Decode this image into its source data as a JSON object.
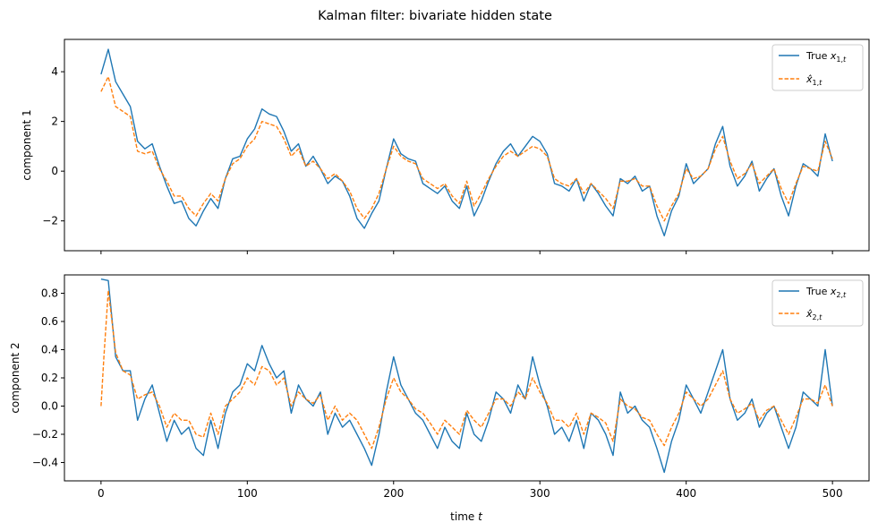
{
  "figure": {
    "title": "Kalman filter: bivariate hidden state",
    "xlabel_text": "time ",
    "xlabel_var": "t"
  },
  "colors": {
    "true": "#1f77b4",
    "estimate": "#ff7f0e"
  },
  "chart_data": [
    {
      "type": "line",
      "ylabel": "component 1",
      "xlim": [
        -25,
        525
      ],
      "ylim": [
        -3.2,
        5.3
      ],
      "xticks": [
        0,
        100,
        200,
        300,
        400,
        500
      ],
      "yticks": [
        -2,
        0,
        2,
        4
      ],
      "ytick_labels": [
        "−2",
        "0",
        "2",
        "4"
      ],
      "legend": {
        "position": "top-right",
        "entries": [
          "True x_{1,t}",
          "x̂_{1,t}"
        ]
      },
      "series": [
        {
          "name": "True x_{1,t}",
          "style": "solid",
          "color": "#1f77b4",
          "x": [
            0,
            5,
            10,
            15,
            20,
            25,
            30,
            35,
            40,
            45,
            50,
            55,
            60,
            65,
            70,
            75,
            80,
            85,
            90,
            95,
            100,
            105,
            110,
            115,
            120,
            125,
            130,
            135,
            140,
            145,
            150,
            155,
            160,
            165,
            170,
            175,
            180,
            185,
            190,
            195,
            200,
            205,
            210,
            215,
            220,
            225,
            230,
            235,
            240,
            245,
            250,
            255,
            260,
            265,
            270,
            275,
            280,
            285,
            290,
            295,
            300,
            305,
            310,
            315,
            320,
            325,
            330,
            335,
            340,
            345,
            350,
            355,
            360,
            365,
            370,
            375,
            380,
            385,
            390,
            395,
            400,
            405,
            410,
            415,
            420,
            425,
            430,
            435,
            440,
            445,
            450,
            455,
            460,
            465,
            470,
            475,
            480,
            485,
            490,
            495,
            500
          ],
          "y": [
            3.9,
            4.9,
            3.6,
            3.1,
            2.6,
            1.2,
            0.9,
            1.1,
            0.2,
            -0.6,
            -1.3,
            -1.2,
            -1.9,
            -2.2,
            -1.6,
            -1.1,
            -1.5,
            -0.3,
            0.5,
            0.6,
            1.3,
            1.7,
            2.5,
            2.3,
            2.2,
            1.6,
            0.8,
            1.1,
            0.2,
            0.6,
            0.1,
            -0.5,
            -0.2,
            -0.4,
            -1.0,
            -1.9,
            -2.3,
            -1.7,
            -1.2,
            0.1,
            1.3,
            0.7,
            0.5,
            0.4,
            -0.5,
            -0.7,
            -0.9,
            -0.6,
            -1.2,
            -1.5,
            -0.6,
            -1.8,
            -1.2,
            -0.4,
            0.3,
            0.8,
            1.1,
            0.6,
            1.0,
            1.4,
            1.2,
            0.7,
            -0.5,
            -0.6,
            -0.8,
            -0.3,
            -1.2,
            -0.5,
            -0.9,
            -1.4,
            -1.8,
            -0.3,
            -0.5,
            -0.2,
            -0.8,
            -0.6,
            -1.8,
            -2.6,
            -1.6,
            -1.0,
            0.3,
            -0.5,
            -0.2,
            0.1,
            1.1,
            1.8,
            0.2,
            -0.6,
            -0.2,
            0.4,
            -0.8,
            -0.3,
            0.1,
            -1.0,
            -1.8,
            -0.6,
            0.3,
            0.1,
            -0.2,
            1.5,
            0.4
          ]
        },
        {
          "name": "x̂_{1,t}",
          "style": "dashed",
          "color": "#ff7f0e",
          "x": [
            0,
            5,
            10,
            15,
            20,
            25,
            30,
            35,
            40,
            45,
            50,
            55,
            60,
            65,
            70,
            75,
            80,
            85,
            90,
            95,
            100,
            105,
            110,
            115,
            120,
            125,
            130,
            135,
            140,
            145,
            150,
            155,
            160,
            165,
            170,
            175,
            180,
            185,
            190,
            195,
            200,
            205,
            210,
            215,
            220,
            225,
            230,
            235,
            240,
            245,
            250,
            255,
            260,
            265,
            270,
            275,
            280,
            285,
            290,
            295,
            300,
            305,
            310,
            315,
            320,
            325,
            330,
            335,
            340,
            345,
            350,
            355,
            360,
            365,
            370,
            375,
            380,
            385,
            390,
            395,
            400,
            405,
            410,
            415,
            420,
            425,
            430,
            435,
            440,
            445,
            450,
            455,
            460,
            465,
            470,
            475,
            480,
            485,
            490,
            495,
            500
          ],
          "y": [
            3.2,
            3.8,
            2.6,
            2.4,
            2.2,
            0.8,
            0.7,
            0.8,
            0.1,
            -0.4,
            -1.0,
            -1.0,
            -1.5,
            -1.8,
            -1.3,
            -0.9,
            -1.2,
            -0.3,
            0.3,
            0.5,
            1.0,
            1.3,
            2.0,
            1.9,
            1.8,
            1.3,
            0.6,
            0.9,
            0.2,
            0.4,
            0.1,
            -0.3,
            -0.1,
            -0.4,
            -0.8,
            -1.5,
            -1.9,
            -1.5,
            -0.9,
            0.1,
            1.0,
            0.6,
            0.4,
            0.3,
            -0.3,
            -0.5,
            -0.7,
            -0.5,
            -1.0,
            -1.3,
            -0.4,
            -1.4,
            -0.9,
            -0.3,
            0.2,
            0.6,
            0.8,
            0.6,
            0.8,
            1.0,
            0.9,
            0.6,
            -0.3,
            -0.5,
            -0.6,
            -0.3,
            -0.9,
            -0.5,
            -0.8,
            -1.1,
            -1.5,
            -0.4,
            -0.4,
            -0.3,
            -0.6,
            -0.6,
            -1.4,
            -2.0,
            -1.4,
            -0.9,
            0.1,
            -0.3,
            -0.2,
            0.1,
            0.9,
            1.4,
            0.4,
            -0.3,
            -0.1,
            0.3,
            -0.5,
            -0.2,
            0.1,
            -0.7,
            -1.3,
            -0.5,
            0.2,
            0.1,
            0.0,
            1.2,
            0.5
          ]
        }
      ]
    },
    {
      "type": "line",
      "ylabel": "component 2",
      "xlim": [
        -25,
        525
      ],
      "ylim": [
        -0.53,
        0.93
      ],
      "xticks": [
        0,
        100,
        200,
        300,
        400,
        500
      ],
      "xtick_labels": [
        "0",
        "100",
        "200",
        "300",
        "400",
        "500"
      ],
      "yticks": [
        -0.4,
        -0.2,
        0.0,
        0.2,
        0.4,
        0.6,
        0.8
      ],
      "ytick_labels": [
        "−0.4",
        "−0.2",
        "0.0",
        "0.2",
        "0.4",
        "0.6",
        "0.8"
      ],
      "legend": {
        "position": "top-right",
        "entries": [
          "True x_{2,t}",
          "x̂_{2,t}"
        ]
      },
      "series": [
        {
          "name": "True x_{2,t}",
          "style": "solid",
          "color": "#1f77b4",
          "x": [
            0,
            5,
            10,
            15,
            20,
            25,
            30,
            35,
            40,
            45,
            50,
            55,
            60,
            65,
            70,
            75,
            80,
            85,
            90,
            95,
            100,
            105,
            110,
            115,
            120,
            125,
            130,
            135,
            140,
            145,
            150,
            155,
            160,
            165,
            170,
            175,
            180,
            185,
            190,
            195,
            200,
            205,
            210,
            215,
            220,
            225,
            230,
            235,
            240,
            245,
            250,
            255,
            260,
            265,
            270,
            275,
            280,
            285,
            290,
            295,
            300,
            305,
            310,
            315,
            320,
            325,
            330,
            335,
            340,
            345,
            350,
            355,
            360,
            365,
            370,
            375,
            380,
            385,
            390,
            395,
            400,
            405,
            410,
            415,
            420,
            425,
            430,
            435,
            440,
            445,
            450,
            455,
            460,
            465,
            470,
            475,
            480,
            485,
            490,
            495,
            500
          ],
          "y": [
            0.9,
            0.89,
            0.35,
            0.25,
            0.25,
            -0.1,
            0.05,
            0.15,
            -0.05,
            -0.25,
            -0.1,
            -0.2,
            -0.15,
            -0.3,
            -0.35,
            -0.1,
            -0.3,
            -0.05,
            0.1,
            0.15,
            0.3,
            0.25,
            0.43,
            0.3,
            0.2,
            0.25,
            -0.05,
            0.15,
            0.05,
            0.0,
            0.1,
            -0.2,
            -0.05,
            -0.15,
            -0.1,
            -0.2,
            -0.3,
            -0.42,
            -0.2,
            0.1,
            0.35,
            0.15,
            0.05,
            -0.05,
            -0.1,
            -0.2,
            -0.3,
            -0.15,
            -0.25,
            -0.3,
            -0.05,
            -0.2,
            -0.25,
            -0.1,
            0.1,
            0.05,
            -0.05,
            0.15,
            0.05,
            0.35,
            0.15,
            0.0,
            -0.2,
            -0.15,
            -0.25,
            -0.1,
            -0.3,
            -0.05,
            -0.1,
            -0.2,
            -0.35,
            0.1,
            -0.05,
            0.0,
            -0.1,
            -0.15,
            -0.3,
            -0.47,
            -0.25,
            -0.1,
            0.15,
            0.05,
            -0.05,
            0.1,
            0.25,
            0.4,
            0.05,
            -0.1,
            -0.05,
            0.05,
            -0.15,
            -0.05,
            0.0,
            -0.15,
            -0.3,
            -0.15,
            0.1,
            0.05,
            0.0,
            0.4,
            0.0
          ]
        },
        {
          "name": "x̂_{2,t}",
          "style": "dashed",
          "color": "#ff7f0e",
          "x": [
            0,
            2,
            5,
            10,
            15,
            20,
            25,
            30,
            35,
            40,
            45,
            50,
            55,
            60,
            65,
            70,
            75,
            80,
            85,
            90,
            95,
            100,
            105,
            110,
            115,
            120,
            125,
            130,
            135,
            140,
            145,
            150,
            155,
            160,
            165,
            170,
            175,
            180,
            185,
            190,
            195,
            200,
            205,
            210,
            215,
            220,
            225,
            230,
            235,
            240,
            245,
            250,
            255,
            260,
            265,
            270,
            275,
            280,
            285,
            290,
            295,
            300,
            305,
            310,
            315,
            320,
            325,
            330,
            335,
            340,
            345,
            350,
            355,
            360,
            365,
            370,
            375,
            380,
            385,
            390,
            395,
            400,
            405,
            410,
            415,
            420,
            425,
            430,
            435,
            440,
            445,
            450,
            455,
            460,
            465,
            470,
            475,
            480,
            485,
            490,
            495,
            500
          ],
          "y": [
            0.0,
            0.35,
            0.82,
            0.38,
            0.25,
            0.22,
            0.05,
            0.08,
            0.1,
            0.0,
            -0.15,
            -0.05,
            -0.1,
            -0.1,
            -0.2,
            -0.22,
            -0.05,
            -0.2,
            0.0,
            0.05,
            0.1,
            0.2,
            0.15,
            0.28,
            0.25,
            0.15,
            0.2,
            0.0,
            0.1,
            0.05,
            0.02,
            0.08,
            -0.1,
            0.0,
            -0.1,
            -0.05,
            -0.1,
            -0.2,
            -0.3,
            -0.15,
            0.05,
            0.2,
            0.1,
            0.05,
            -0.02,
            -0.05,
            -0.12,
            -0.2,
            -0.1,
            -0.15,
            -0.2,
            -0.03,
            -0.1,
            -0.15,
            -0.05,
            0.05,
            0.05,
            0.0,
            0.1,
            0.05,
            0.2,
            0.1,
            0.02,
            -0.1,
            -0.1,
            -0.15,
            -0.05,
            -0.2,
            -0.05,
            -0.08,
            -0.12,
            -0.25,
            0.05,
            0.0,
            -0.02,
            -0.08,
            -0.1,
            -0.2,
            -0.28,
            -0.15,
            -0.05,
            0.1,
            0.05,
            0.0,
            0.05,
            0.15,
            0.25,
            0.05,
            -0.05,
            -0.02,
            0.02,
            -0.1,
            -0.03,
            0.0,
            -0.1,
            -0.2,
            -0.08,
            0.05,
            0.05,
            0.02,
            0.15,
            0.0
          ]
        }
      ]
    }
  ]
}
